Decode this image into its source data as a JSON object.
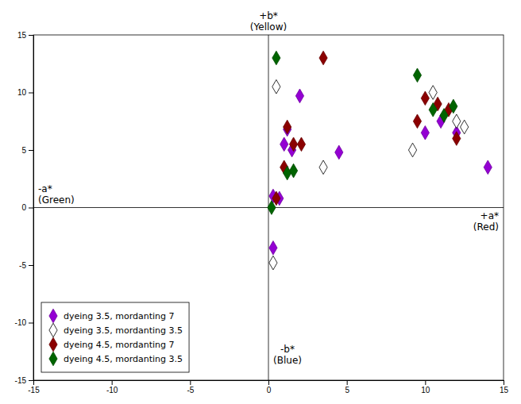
{
  "chart_data": {
    "type": "scatter",
    "xlim": [
      -15,
      15
    ],
    "ylim": [
      -15,
      15
    ],
    "xticks": [
      -15,
      -10,
      -5,
      0,
      5,
      10,
      15
    ],
    "yticks": [
      -15,
      -10,
      -5,
      0,
      5,
      10,
      15
    ],
    "grid": false,
    "legend": "lower left",
    "annotations": [
      "+b*\n(Yellow)",
      "-b*\n(Blue)",
      "-a*\n(Green)",
      "+a*\n(Red)"
    ],
    "series": [
      {
        "name": "dyeing 3.5, mordanting 7",
        "color": "#9400D3",
        "marker": "diamond",
        "x": [
          0.3,
          0.7,
          1.0,
          1.5,
          1.2,
          2.0,
          4.5,
          0.3,
          10.0,
          11.0,
          12.0,
          14.0
        ],
        "values": [
          1.0,
          0.8,
          5.5,
          5.0,
          6.8,
          9.7,
          4.8,
          -3.5,
          6.5,
          7.5,
          6.5,
          3.5
        ]
      },
      {
        "name": "dyeing 3.5, mordanting 3.5",
        "color": "#000000",
        "marker": "diamond-open",
        "x": [
          0.5,
          3.5,
          0.3,
          9.2,
          10.5,
          12.0,
          12.5
        ],
        "values": [
          10.5,
          3.5,
          -4.8,
          5.0,
          10.0,
          7.5,
          7.0
        ]
      },
      {
        "name": "dyeing 4.5, mordanting 7",
        "color": "#8B0000",
        "marker": "diamond",
        "x": [
          0.5,
          1.0,
          1.6,
          2.1,
          1.2,
          3.5,
          9.5,
          10.0,
          10.8,
          11.5,
          12.0
        ],
        "values": [
          0.8,
          3.5,
          5.5,
          5.5,
          7.0,
          13.0,
          7.5,
          9.5,
          9.0,
          8.5,
          6.0
        ]
      },
      {
        "name": "dyeing 4.5, mordanting 3.5",
        "color": "#006400",
        "marker": "diamond",
        "x": [
          0.2,
          1.2,
          1.6,
          0.5,
          9.5,
          10.5,
          11.2,
          11.8
        ],
        "values": [
          0.0,
          3.0,
          3.2,
          13.0,
          11.5,
          8.5,
          8.0,
          8.8
        ]
      }
    ]
  }
}
